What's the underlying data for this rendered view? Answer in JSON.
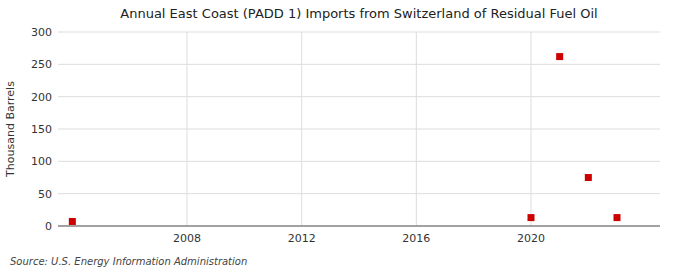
{
  "chart_data": {
    "type": "scatter",
    "title": "Annual East Coast (PADD 1) Imports from Switzerland of Residual Fuel Oil",
    "ylabel": "Thousand Barrels",
    "source": "Source: U.S. Energy Information Administration",
    "x": [
      2004,
      2020,
      2021,
      2022,
      2023
    ],
    "values": [
      7,
      13,
      262,
      75,
      13
    ],
    "color": "#cc0000",
    "marker": "square",
    "xlim": [
      2003.5,
      2024.5
    ],
    "ylim": [
      0,
      300
    ],
    "xticks": [
      2008,
      2012,
      2016,
      2020
    ],
    "yticks": [
      0,
      50,
      100,
      150,
      200,
      250,
      300
    ],
    "grid": true
  }
}
